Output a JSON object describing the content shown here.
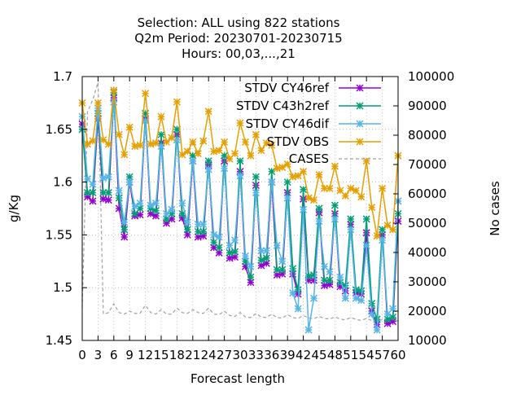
{
  "chart_data": {
    "type": "line",
    "title_lines": [
      "Selection: ALL using   822 stations",
      "Q2m   Period: 20230701-20230715",
      "Hours:  00,03,...,21"
    ],
    "xlabel": "Forecast length",
    "ylabel": "g/Kg",
    "y2label": "No cases",
    "xlim": [
      0,
      60
    ],
    "ylim": [
      1.45,
      1.7
    ],
    "y2lim": [
      10000,
      100000
    ],
    "x_ticks": [
      "0",
      "3",
      "6",
      "9",
      "12",
      "15",
      "18",
      "21",
      "24",
      "27",
      "30",
      "33",
      "36",
      "39",
      "42",
      "45",
      "48",
      "51",
      "54",
      "57",
      "60"
    ],
    "y_ticks": [
      "1.45",
      "1.5",
      "1.55",
      "1.6",
      "1.65",
      "1.7"
    ],
    "y2_ticks": [
      "10000",
      "20000",
      "30000",
      "40000",
      "50000",
      "60000",
      "70000",
      "80000",
      "90000",
      "100000"
    ],
    "grid": true,
    "legend_position": "top-right",
    "x": [
      0,
      1,
      2,
      3,
      4,
      5,
      6,
      7,
      8,
      9,
      10,
      11,
      12,
      13,
      14,
      15,
      16,
      17,
      18,
      19,
      20,
      21,
      22,
      23,
      24,
      25,
      26,
      27,
      28,
      29,
      30,
      31,
      32,
      33,
      34,
      35,
      36,
      37,
      38,
      39,
      40,
      41,
      42,
      43,
      44,
      45,
      46,
      47,
      48,
      49,
      50,
      51,
      52,
      53,
      54,
      55,
      56,
      57,
      58,
      59,
      60
    ],
    "series": [
      {
        "name": "STDV CY46ref",
        "color": "#9400d3",
        "marker": "x",
        "axis": "y",
        "values": [
          1.655,
          1.586,
          1.582,
          1.66,
          1.584,
          1.583,
          1.68,
          1.575,
          1.548,
          1.6,
          1.568,
          1.569,
          1.66,
          1.57,
          1.568,
          1.637,
          1.561,
          1.565,
          1.645,
          1.566,
          1.55,
          1.62,
          1.548,
          1.549,
          1.616,
          1.538,
          1.533,
          1.62,
          1.528,
          1.529,
          1.61,
          1.52,
          1.505,
          1.597,
          1.521,
          1.523,
          1.6,
          1.512,
          1.513,
          1.59,
          1.513,
          1.494,
          1.584,
          1.507,
          1.507,
          1.571,
          1.502,
          1.503,
          1.57,
          1.501,
          1.497,
          1.56,
          1.495,
          1.494,
          1.552,
          1.478,
          1.465,
          1.55,
          1.466,
          1.468,
          1.563
        ]
      },
      {
        "name": "STDV C43h2ref",
        "color": "#009e73",
        "marker": "x",
        "axis": "y",
        "values": [
          1.65,
          1.59,
          1.59,
          1.665,
          1.59,
          1.59,
          1.685,
          1.585,
          1.555,
          1.605,
          1.57,
          1.575,
          1.665,
          1.575,
          1.573,
          1.645,
          1.565,
          1.57,
          1.65,
          1.57,
          1.555,
          1.625,
          1.553,
          1.553,
          1.62,
          1.543,
          1.538,
          1.625,
          1.533,
          1.534,
          1.62,
          1.525,
          1.51,
          1.605,
          1.526,
          1.528,
          1.61,
          1.517,
          1.517,
          1.6,
          1.518,
          1.498,
          1.593,
          1.511,
          1.512,
          1.575,
          1.507,
          1.507,
          1.578,
          1.505,
          1.502,
          1.565,
          1.498,
          1.497,
          1.565,
          1.485,
          1.47,
          1.555,
          1.47,
          1.472,
          1.57
        ]
      },
      {
        "name": "STDV CY46dif",
        "color": "#56b4e9",
        "marker": "x",
        "axis": "y",
        "values": [
          1.662,
          1.603,
          1.598,
          1.67,
          1.604,
          1.605,
          1.676,
          1.592,
          1.562,
          1.6,
          1.577,
          1.58,
          1.658,
          1.578,
          1.58,
          1.634,
          1.57,
          1.574,
          1.64,
          1.58,
          1.562,
          1.62,
          1.56,
          1.56,
          1.612,
          1.55,
          1.548,
          1.613,
          1.54,
          1.545,
          1.606,
          1.53,
          1.52,
          1.59,
          1.535,
          1.535,
          1.6,
          1.54,
          1.525,
          1.585,
          1.495,
          1.48,
          1.574,
          1.46,
          1.49,
          1.563,
          1.52,
          1.515,
          1.565,
          1.51,
          1.49,
          1.555,
          1.49,
          1.488,
          1.54,
          1.475,
          1.46,
          1.545,
          1.475,
          1.48,
          1.582
        ]
      },
      {
        "name": "STDV OBS",
        "color": "#e69f00",
        "marker": "x",
        "axis": "y",
        "values": [
          1.675,
          1.636,
          1.639,
          1.675,
          1.64,
          1.636,
          1.687,
          1.645,
          1.626,
          1.652,
          1.634,
          1.635,
          1.684,
          1.636,
          1.637,
          1.662,
          1.638,
          1.642,
          1.676,
          1.626,
          1.629,
          1.638,
          1.627,
          1.639,
          1.667,
          1.629,
          1.63,
          1.638,
          1.622,
          1.627,
          1.656,
          1.638,
          1.625,
          1.645,
          1.63,
          1.637,
          1.635,
          1.613,
          1.614,
          1.617,
          1.605,
          1.606,
          1.61,
          1.585,
          1.583,
          1.607,
          1.594,
          1.594,
          1.615,
          1.592,
          1.587,
          1.594,
          1.592,
          1.586,
          1.62,
          1.576,
          1.549,
          1.594,
          1.559,
          1.555,
          1.625
        ]
      },
      {
        "name": "CASES",
        "color": "#a0a0a0",
        "marker": "none",
        "dashed": true,
        "axis": "y2",
        "values": [
          21000,
          88000,
          92000,
          98000,
          19000,
          19500,
          22500,
          19500,
          19000,
          20000,
          19200,
          19300,
          22000,
          19500,
          19000,
          20500,
          19000,
          19000,
          21000,
          19500,
          19200,
          20500,
          19500,
          19200,
          21000,
          19000,
          18800,
          20000,
          18500,
          18200,
          19500,
          18000,
          17800,
          19200,
          18000,
          17800,
          19000,
          17800,
          17600,
          18800,
          17800,
          17500,
          18500,
          17700,
          17400,
          18200,
          17500,
          17300,
          18000,
          17300,
          17000,
          17800,
          17200,
          16800,
          17500,
          16800,
          16500,
          17200,
          16500,
          16200,
          16800
        ]
      }
    ]
  }
}
